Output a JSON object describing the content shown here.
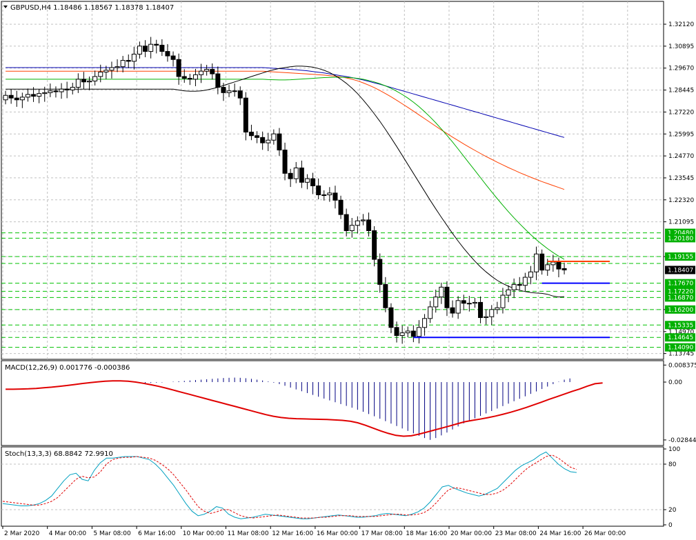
{
  "colors": {
    "bull": "#ffffff",
    "bear": "#000000",
    "ma_fast": "#000000",
    "ma_mid": "#00b000",
    "ma_slow": "#ff4000",
    "ma_long": "#0000b0",
    "level_lines": "#00c000",
    "support_line": "#0000ff",
    "resistance_line": "#ff4000",
    "macd_hist": "#000080",
    "macd_signal": "#e00000",
    "stoch_main": "#00a0c0",
    "stoch_signal": "#e00000",
    "tag_green": "#00b000",
    "tag_black": "#000000"
  },
  "header": {
    "title": "GBPUSD,H4  1.18486 1.18567 1.18378 1.18407",
    "dropdown_icon": "triangle-down-icon"
  },
  "chart_data": [
    {
      "type": "candlestick",
      "panel": "main",
      "symbol": "GBPUSD",
      "timeframe": "H4",
      "ohlc_last": {
        "open": 1.18486,
        "high": 1.18567,
        "low": 1.18378,
        "close": 1.18407
      },
      "ylim": [
        1.135,
        1.327
      ],
      "y_ticks": [
        "1.32120",
        "1.30895",
        "1.29670",
        "1.28445",
        "1.27220",
        "1.25995",
        "1.24770",
        "1.23545",
        "1.22320",
        "1.21095",
        "1.19155",
        "1.16200",
        "1.14970",
        "1.13745"
      ],
      "price_tags": [
        {
          "label": "1.20480",
          "value": 1.2048,
          "color": "green"
        },
        {
          "label": "1.20180",
          "value": 1.2018,
          "color": "green"
        },
        {
          "label": "1.19155",
          "value": 1.19155,
          "color": "green"
        },
        {
          "label": "1.18407",
          "value": 1.18407,
          "color": "black"
        },
        {
          "label": "1.17670",
          "value": 1.1767,
          "color": "green"
        },
        {
          "label": "1.17220",
          "value": 1.1722,
          "color": "green"
        },
        {
          "label": "1.16870",
          "value": 1.1687,
          "color": "green"
        },
        {
          "label": "1.16200",
          "value": 1.162,
          "color": "green"
        },
        {
          "label": "1.15335",
          "value": 1.15335,
          "color": "green"
        },
        {
          "label": "1.14645",
          "value": 1.14645,
          "color": "green"
        },
        {
          "label": "1.14090",
          "value": 1.1409,
          "color": "green"
        }
      ],
      "level_lines": [
        1.2048,
        1.2018,
        1.19155,
        1.1877,
        1.1767,
        1.1722,
        1.1687,
        1.162,
        1.15335,
        1.14645,
        1.1409
      ],
      "support_levels": [
        {
          "value": 1.14645,
          "from_bar": 73,
          "to_bar": 103
        },
        {
          "value": 1.1767,
          "from_bar": 96,
          "to_bar": 103
        }
      ],
      "resistance_levels": [
        {
          "value": 1.18887,
          "from_bar": 97,
          "to_bar": 103
        }
      ],
      "closes": [
        1.2815,
        1.28,
        1.279,
        1.2805,
        1.282,
        1.281,
        1.2825,
        1.283,
        1.284,
        1.2835,
        1.285,
        1.2845,
        1.286,
        1.2905,
        1.289,
        1.2895,
        1.292,
        1.2945,
        1.2955,
        1.297,
        1.2975,
        1.301,
        1.3005,
        1.3045,
        1.309,
        1.306,
        1.31,
        1.3095,
        1.306,
        1.3035,
        1.3015,
        1.292,
        1.291,
        1.2905,
        1.293,
        1.295,
        1.296,
        1.2935,
        1.286,
        1.283,
        1.284,
        1.284,
        1.28,
        1.261,
        1.259,
        1.258,
        1.255,
        1.2565,
        1.26,
        1.251,
        1.238,
        1.235,
        1.241,
        1.233,
        1.235,
        1.231,
        1.226,
        1.226,
        1.227,
        1.223,
        1.215,
        1.206,
        1.209,
        1.2115,
        1.212,
        1.206,
        1.19,
        1.176,
        1.163,
        1.152,
        1.1475,
        1.149,
        1.15,
        1.147,
        1.152,
        1.157,
        1.1635,
        1.169,
        1.1745,
        1.163,
        1.16,
        1.167,
        1.1655,
        1.1655,
        1.166,
        1.1575,
        1.158,
        1.162,
        1.163,
        1.17,
        1.173,
        1.176,
        1.1755,
        1.18,
        1.183,
        1.193,
        1.184,
        1.187,
        1.1885,
        1.1846,
        1.1841
      ],
      "opens": [
        1.279,
        1.2815,
        1.28,
        1.279,
        1.2805,
        1.282,
        1.281,
        1.2825,
        1.283,
        1.284,
        1.2835,
        1.285,
        1.2845,
        1.286,
        1.2905,
        1.289,
        1.2895,
        1.292,
        1.2945,
        1.2955,
        1.297,
        1.2975,
        1.301,
        1.3005,
        1.3045,
        1.309,
        1.306,
        1.31,
        1.3095,
        1.306,
        1.3035,
        1.3015,
        1.292,
        1.291,
        1.2905,
        1.293,
        1.295,
        1.296,
        1.2935,
        1.286,
        1.283,
        1.284,
        1.284,
        1.28,
        1.261,
        1.259,
        1.258,
        1.255,
        1.2565,
        1.26,
        1.251,
        1.238,
        1.235,
        1.241,
        1.233,
        1.235,
        1.231,
        1.226,
        1.226,
        1.227,
        1.223,
        1.215,
        1.206,
        1.209,
        1.2115,
        1.212,
        1.206,
        1.19,
        1.176,
        1.163,
        1.152,
        1.1475,
        1.149,
        1.15,
        1.147,
        1.152,
        1.157,
        1.1635,
        1.169,
        1.1745,
        1.163,
        1.16,
        1.167,
        1.1655,
        1.1655,
        1.166,
        1.1575,
        1.158,
        1.162,
        1.163,
        1.17,
        1.173,
        1.176,
        1.1755,
        1.18,
        1.183,
        1.193,
        1.184,
        1.187,
        1.1885,
        1.18486
      ],
      "ma_fast": [
        1.285,
        1.2845,
        1.284,
        1.2838,
        1.2838,
        1.284,
        1.2845,
        1.2852,
        1.286,
        1.287,
        1.288,
        1.289,
        1.29,
        1.291,
        1.292,
        1.293,
        1.294,
        1.295,
        1.2958,
        1.2965,
        1.297,
        1.2975,
        1.2978,
        1.2978,
        1.2976,
        1.2972,
        1.2965,
        1.2955,
        1.2942,
        1.2925,
        1.2905,
        1.2882,
        1.2855,
        1.2825,
        1.279,
        1.2752,
        1.2712,
        1.267,
        1.2625,
        1.2578,
        1.253,
        1.248,
        1.243,
        1.238,
        1.233,
        1.228,
        1.223,
        1.2182,
        1.2135,
        1.209,
        1.2045,
        1.2002,
        1.1962,
        1.1925,
        1.189,
        1.1858,
        1.183,
        1.1805,
        1.1783,
        1.1765,
        1.175,
        1.1738,
        1.1728,
        1.172,
        1.1715,
        1.1712,
        1.171,
        1.1705,
        1.1695,
        1.169,
        1.1692
      ],
      "ma_fast_start_bar": 30,
      "ma_mid": [
        1.2905,
        1.2903,
        1.2902,
        1.2901,
        1.2901,
        1.2902,
        1.2904,
        1.2906,
        1.2908,
        1.291,
        1.2912,
        1.2914,
        1.2915,
        1.2916,
        1.2916,
        1.2915,
        1.2913,
        1.291,
        1.2905,
        1.2898,
        1.289,
        1.288,
        1.2868,
        1.2854,
        1.2838,
        1.282,
        1.28,
        1.2777,
        1.2752,
        1.2724,
        1.2694,
        1.2662,
        1.2628,
        1.2592,
        1.2555,
        1.2516,
        1.2476,
        1.2436,
        1.2396,
        1.2356,
        1.2316,
        1.2277,
        1.2239,
        1.2202,
        1.2166,
        1.2132,
        1.2099,
        1.2068,
        1.2038,
        1.201,
        1.1984,
        1.196,
        1.1938,
        1.1918,
        1.19
      ],
      "ma_mid_start_bar": 46,
      "ma_slow": [
        1.295,
        1.2948,
        1.2946,
        1.2944,
        1.2942,
        1.294,
        1.2938,
        1.2936,
        1.2934,
        1.2932,
        1.293,
        1.2928,
        1.2925,
        1.2922,
        1.2918,
        1.2912,
        1.2905,
        1.2896,
        1.2885,
        1.2872,
        1.2858,
        1.2842,
        1.2825,
        1.2807,
        1.2788,
        1.2768,
        1.2748,
        1.2727,
        1.2706,
        1.2685,
        1.2664,
        1.2643,
        1.2622,
        1.2602,
        1.2582,
        1.2563,
        1.2544,
        1.2526,
        1.2508,
        1.2491,
        1.2474,
        1.2458,
        1.2442,
        1.2427,
        1.2412,
        1.2398,
        1.2384,
        1.2371,
        1.2358,
        1.2346,
        1.2334,
        1.2323,
        1.2312,
        1.2301,
        1.229
      ],
      "ma_slow_start_bar": 46,
      "ma_long": [
        1.297,
        1.2968,
        1.2966,
        1.2964,
        1.2962,
        1.296,
        1.2958,
        1.2955,
        1.2952,
        1.2948,
        1.2944,
        1.294,
        1.2935,
        1.293,
        1.2925,
        1.292,
        1.2914,
        1.2908,
        1.2901,
        1.2893,
        1.2885,
        1.2877,
        1.2868,
        1.2859,
        1.285,
        1.2841,
        1.2832,
        1.2823,
        1.2814,
        1.2805,
        1.2796,
        1.2787,
        1.2778,
        1.2769,
        1.276,
        1.2751,
        1.2742,
        1.2733,
        1.2724,
        1.2715,
        1.2706,
        1.2697,
        1.2688,
        1.2679,
        1.267,
        1.2661,
        1.2652,
        1.2643,
        1.2634,
        1.2625,
        1.2616,
        1.2607,
        1.2598,
        1.2589,
        1.258
      ],
      "ma_long_start_bar": 46
    },
    {
      "type": "macd",
      "panel": "macd",
      "title": "MACD(12,26,9) 0.001776 -0.000386",
      "ylim": [
        -0.0305,
        0.0095
      ],
      "y_ticks": [
        "0.008375",
        "0.00",
        "-0.02844"
      ],
      "histogram": [
        -0.0005,
        -0.0004,
        -0.0003,
        -0.0002,
        0.0,
        0.0002,
        0.0004,
        0.0006,
        0.0008,
        0.001,
        0.0012,
        0.0014,
        0.0016,
        0.0018,
        0.002,
        0.0021,
        0.0022,
        0.0021,
        0.0019,
        0.0016,
        0.0012,
        0.0008,
        0.0003,
        -0.0003,
        -0.001,
        -0.0018,
        -0.0027,
        -0.0036,
        -0.0045,
        -0.0054,
        -0.0063,
        -0.0072,
        -0.0081,
        -0.009,
        -0.0099,
        -0.0108,
        -0.0117,
        -0.0126,
        -0.0136,
        -0.0146,
        -0.0157,
        -0.0168,
        -0.018,
        -0.0192,
        -0.0204,
        -0.0216,
        -0.0228,
        -0.024,
        -0.0252,
        -0.0264,
        -0.0275,
        -0.0284,
        -0.0275,
        -0.0262,
        -0.0248,
        -0.0233,
        -0.0218,
        -0.0203,
        -0.019,
        -0.0178,
        -0.0166,
        -0.0154,
        -0.0142,
        -0.013,
        -0.0118,
        -0.0106,
        -0.0094,
        -0.0082,
        -0.007,
        -0.0058,
        -0.0046,
        -0.0034,
        -0.0022,
        -0.001,
        0.0002,
        0.0012,
        0.0018
      ],
      "histogram_start_bar": 25,
      "signal": [
        -0.0035,
        -0.0035,
        -0.0034,
        -0.0033,
        -0.0031,
        -0.0028,
        -0.0025,
        -0.0021,
        -0.0017,
        -0.0012,
        -0.0007,
        -0.0003,
        0.0001,
        0.0004,
        0.0006,
        0.0006,
        0.0004,
        0.0,
        -0.0006,
        -0.0013,
        -0.0021,
        -0.003,
        -0.004,
        -0.005,
        -0.006,
        -0.007,
        -0.008,
        -0.009,
        -0.01,
        -0.011,
        -0.012,
        -0.013,
        -0.014,
        -0.015,
        -0.016,
        -0.0168,
        -0.0174,
        -0.0178,
        -0.018,
        -0.0181,
        -0.0182,
        -0.0183,
        -0.0184,
        -0.0186,
        -0.0188,
        -0.0192,
        -0.02,
        -0.0212,
        -0.0226,
        -0.024,
        -0.0252,
        -0.0262,
        -0.0266,
        -0.0264,
        -0.0256,
        -0.0246,
        -0.0236,
        -0.0226,
        -0.0216,
        -0.0205,
        -0.0195,
        -0.0188,
        -0.0182,
        -0.0175,
        -0.0167,
        -0.0158,
        -0.0148,
        -0.0137,
        -0.0125,
        -0.0112,
        -0.0099,
        -0.0085,
        -0.0072,
        -0.0059,
        -0.0046,
        -0.0034,
        -0.002,
        -0.0008,
        -0.0004
      ],
      "signal_start_bar": 0
    },
    {
      "type": "stochastic",
      "panel": "stoch",
      "title": "Stoch(13,3,3) 68.8842 72.9910",
      "ylim": [
        0,
        100
      ],
      "y_ticks": [
        "100",
        "80",
        "20",
        "0"
      ],
      "levels": [
        80,
        20
      ],
      "main": [
        28,
        27,
        26,
        25,
        25,
        26,
        28,
        32,
        38,
        48,
        58,
        66,
        68,
        60,
        58,
        72,
        82,
        88,
        88,
        89,
        90,
        90,
        90,
        88,
        86,
        80,
        72,
        62,
        52,
        40,
        28,
        18,
        12,
        14,
        18,
        24,
        22,
        14,
        10,
        8,
        9,
        10,
        12,
        14,
        13,
        12,
        11,
        10,
        9,
        8,
        8,
        9,
        10,
        11,
        12,
        13,
        12,
        11,
        10,
        10,
        11,
        12,
        14,
        15,
        14,
        13,
        12,
        14,
        17,
        22,
        30,
        40,
        50,
        52,
        48,
        45,
        42,
        40,
        38,
        40,
        44,
        48,
        56,
        64,
        72,
        78,
        82,
        86,
        92,
        96,
        88,
        80,
        74,
        70,
        69
      ],
      "signal": [
        31,
        30,
        29,
        28,
        27,
        26,
        26,
        28,
        31,
        36,
        44,
        52,
        60,
        64,
        62,
        63,
        70,
        80,
        86,
        88,
        89,
        89,
        90,
        89,
        88,
        85,
        80,
        74,
        66,
        56,
        46,
        35,
        24,
        18,
        15,
        17,
        20,
        20,
        16,
        12,
        10,
        9,
        10,
        11,
        12,
        13,
        12,
        11,
        10,
        9,
        9,
        9,
        10,
        10,
        11,
        12,
        12,
        12,
        11,
        11,
        11,
        11,
        12,
        13,
        14,
        14,
        13,
        13,
        14,
        16,
        21,
        29,
        38,
        46,
        49,
        48,
        46,
        44,
        42,
        40,
        40,
        42,
        46,
        52,
        60,
        68,
        75,
        80,
        85,
        90,
        92,
        88,
        82,
        76,
        73
      ],
      "start_bar": 6
    }
  ],
  "time_labels": [
    "2 Mar 2020",
    "4 Mar 00:00",
    "5 Mar 08:00",
    "6 Mar 16:00",
    "10 Mar 00:00",
    "11 Mar 08:00",
    "12 Mar 16:00",
    "16 Mar 00:00",
    "17 Mar 08:00",
    "18 Mar 16:00",
    "20 Mar 00:00",
    "23 Mar 08:00",
    "24 Mar 16:00",
    "26 Mar 00:00"
  ]
}
